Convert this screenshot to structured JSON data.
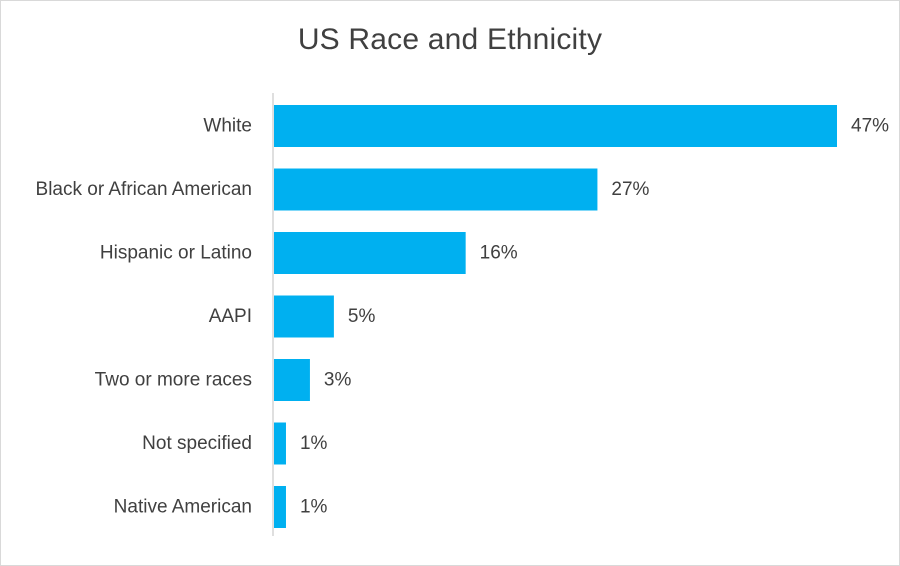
{
  "chart_data": {
    "type": "bar",
    "orientation": "horizontal",
    "title": "US Race and Ethnicity",
    "categories": [
      "White",
      "Black or African American",
      "Hispanic or Latino",
      "AAPI",
      "Two or more races",
      "Not specified",
      "Native American"
    ],
    "values": [
      47,
      27,
      16,
      5,
      3,
      1,
      1
    ],
    "value_labels": [
      "47%",
      "27%",
      "16%",
      "5%",
      "3%",
      "1%",
      "1%"
    ],
    "xlim": [
      0,
      47
    ],
    "grid": false,
    "legend": "none",
    "bar_color": "#00b0f0",
    "axis_color": "#bfbfbf",
    "text_color": "#404040"
  }
}
